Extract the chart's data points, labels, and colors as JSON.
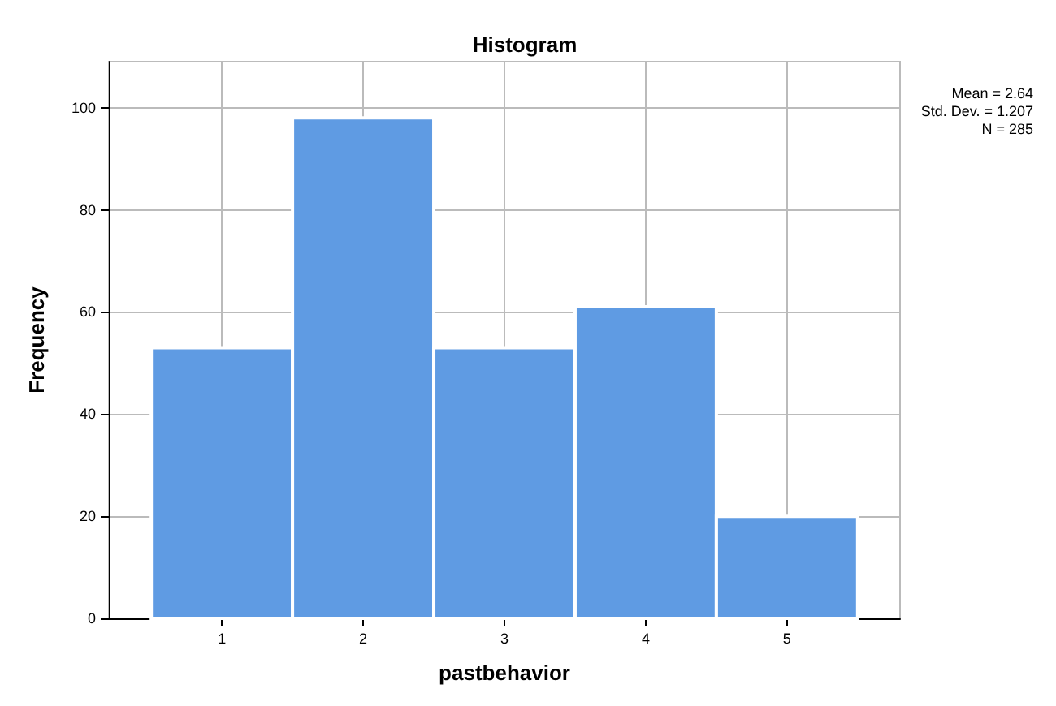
{
  "chart_data": {
    "type": "histogram",
    "title": "Histogram",
    "xlabel": "pastbehavior",
    "ylabel": "Frequency",
    "bins": [
      0.5,
      1.5,
      2.5,
      3.5,
      4.5,
      5.5
    ],
    "values": [
      53,
      98,
      53,
      61,
      20
    ],
    "color": "#5f9be3",
    "xlim": [
      0.2,
      5.8
    ],
    "xticks": [
      1,
      2,
      3,
      4,
      5
    ],
    "ylim": [
      0,
      109
    ],
    "yticks": [
      0,
      20,
      40,
      60,
      80,
      100
    ],
    "grid": true,
    "annotations": [
      "Mean = 2.64",
      "Std. Dev. = 1.207",
      "N = 285"
    ]
  }
}
